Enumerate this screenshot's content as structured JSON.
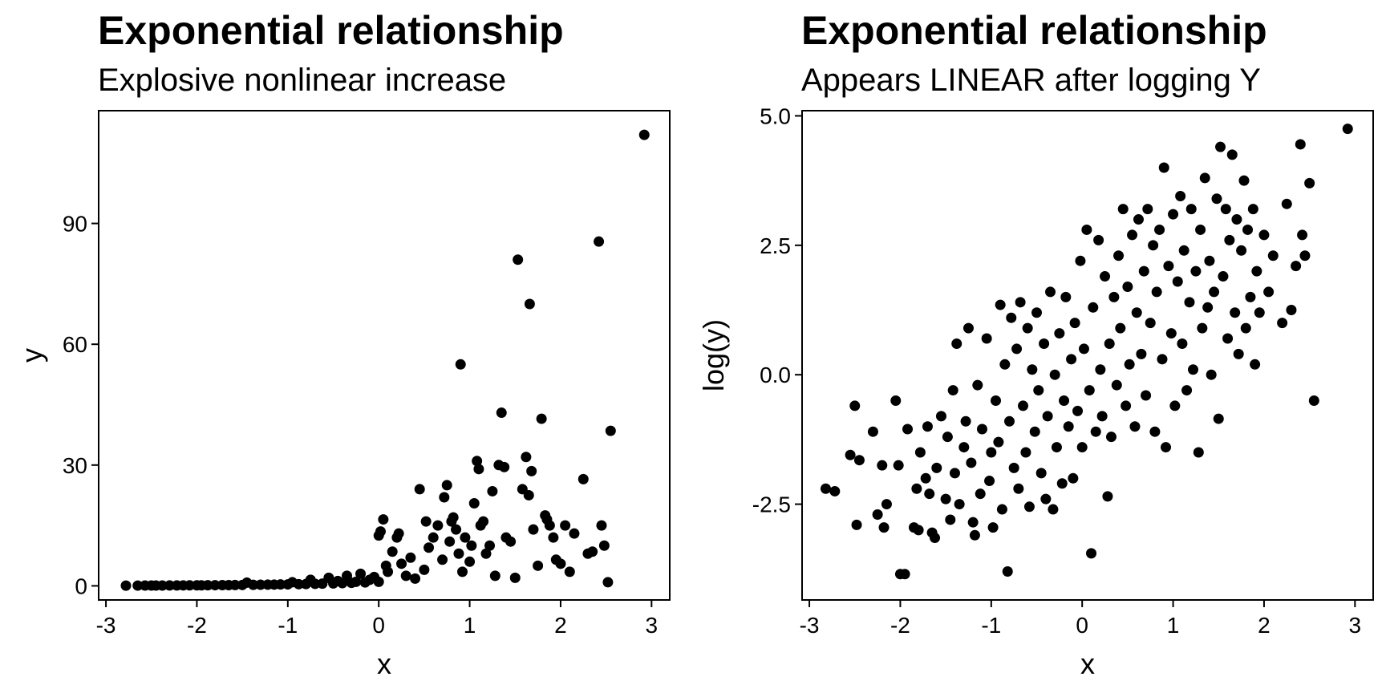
{
  "chart_data": [
    {
      "type": "scatter",
      "title": "Exponential relationship",
      "subtitle": "Explosive nonlinear increase",
      "xlabel": "x",
      "ylabel": "y",
      "xlim": [
        -3.08,
        3.2
      ],
      "ylim": [
        -3.5,
        118
      ],
      "xticks": [
        -3,
        -2,
        -1,
        0,
        1,
        2,
        3
      ],
      "xtick_labels": [
        "-3",
        "-2",
        "-1",
        "0",
        "1",
        "2",
        "3"
      ],
      "yticks": [
        0,
        30,
        60,
        90
      ],
      "ytick_labels": [
        "0",
        "30",
        "60",
        "90"
      ],
      "grid": false,
      "point_color": "#000000",
      "points": [
        [
          -2.78,
          0.06
        ],
        [
          -2.65,
          0.07
        ],
        [
          -2.57,
          0.08
        ],
        [
          -2.5,
          0.08
        ],
        [
          -2.45,
          0.09
        ],
        [
          -2.38,
          0.09
        ],
        [
          -2.3,
          0.1
        ],
        [
          -2.22,
          0.11
        ],
        [
          -2.15,
          0.12
        ],
        [
          -2.08,
          0.13
        ],
        [
          -2.0,
          0.14
        ],
        [
          -1.95,
          0.14
        ],
        [
          -1.88,
          0.15
        ],
        [
          -1.8,
          0.17
        ],
        [
          -1.72,
          0.18
        ],
        [
          -1.65,
          0.19
        ],
        [
          -1.58,
          0.21
        ],
        [
          -1.5,
          0.22
        ],
        [
          -1.45,
          0.8
        ],
        [
          -1.38,
          0.25
        ],
        [
          -1.3,
          0.28
        ],
        [
          -1.22,
          0.3
        ],
        [
          -1.15,
          0.32
        ],
        [
          -1.08,
          0.35
        ],
        [
          -1.0,
          0.37
        ],
        [
          -0.95,
          0.9
        ],
        [
          -0.88,
          0.42
        ],
        [
          -0.8,
          0.45
        ],
        [
          -0.75,
          1.5
        ],
        [
          -0.7,
          0.5
        ],
        [
          -0.62,
          0.55
        ],
        [
          -0.55,
          2.0
        ],
        [
          -0.5,
          0.6
        ],
        [
          -0.45,
          1.2
        ],
        [
          -0.4,
          0.67
        ],
        [
          -0.35,
          2.5
        ],
        [
          -0.3,
          0.75
        ],
        [
          -0.25,
          1.0
        ],
        [
          -0.2,
          3.0
        ],
        [
          -0.15,
          0.85
        ],
        [
          -0.1,
          1.5
        ],
        [
          -0.05,
          2.2
        ],
        [
          0.0,
          1.0
        ],
        [
          0.0,
          12.5
        ],
        [
          0.02,
          13.5
        ],
        [
          0.05,
          16.5
        ],
        [
          0.08,
          5.0
        ],
        [
          0.1,
          3.5
        ],
        [
          0.15,
          8.5
        ],
        [
          0.2,
          12.0
        ],
        [
          0.22,
          13.0
        ],
        [
          0.25,
          5.5
        ],
        [
          0.3,
          2.5
        ],
        [
          0.35,
          7.0
        ],
        [
          0.4,
          1.8
        ],
        [
          0.45,
          24.0
        ],
        [
          0.5,
          4.0
        ],
        [
          0.52,
          16.0
        ],
        [
          0.55,
          9.5
        ],
        [
          0.6,
          12.0
        ],
        [
          0.65,
          15.0
        ],
        [
          0.7,
          6.5
        ],
        [
          0.72,
          22.0
        ],
        [
          0.75,
          25.0
        ],
        [
          0.78,
          11.0
        ],
        [
          0.8,
          16.0
        ],
        [
          0.82,
          17.0
        ],
        [
          0.85,
          14.0
        ],
        [
          0.88,
          8.0
        ],
        [
          0.9,
          55.0
        ],
        [
          0.92,
          3.5
        ],
        [
          0.95,
          12.0
        ],
        [
          1.0,
          6.0
        ],
        [
          1.02,
          10.0
        ],
        [
          1.05,
          20.5
        ],
        [
          1.08,
          31.0
        ],
        [
          1.1,
          29.0
        ],
        [
          1.12,
          15.0
        ],
        [
          1.15,
          16.0
        ],
        [
          1.18,
          8.0
        ],
        [
          1.22,
          10.0
        ],
        [
          1.25,
          23.5
        ],
        [
          1.28,
          2.5
        ],
        [
          1.32,
          30.0
        ],
        [
          1.35,
          43.0
        ],
        [
          1.38,
          29.5
        ],
        [
          1.4,
          12.0
        ],
        [
          1.45,
          11.0
        ],
        [
          1.5,
          2.0
        ],
        [
          1.53,
          81.0
        ],
        [
          1.58,
          24.0
        ],
        [
          1.62,
          32.0
        ],
        [
          1.65,
          22.5
        ],
        [
          1.66,
          70.0
        ],
        [
          1.68,
          28.5
        ],
        [
          1.7,
          14.0
        ],
        [
          1.75,
          5.0
        ],
        [
          1.79,
          41.5
        ],
        [
          1.83,
          17.5
        ],
        [
          1.85,
          16.5
        ],
        [
          1.88,
          15.0
        ],
        [
          1.92,
          12.0
        ],
        [
          1.95,
          6.5
        ],
        [
          2.0,
          5.5
        ],
        [
          2.05,
          15.0
        ],
        [
          2.1,
          3.5
        ],
        [
          2.15,
          13.0
        ],
        [
          2.25,
          26.5
        ],
        [
          2.3,
          8.0
        ],
        [
          2.35,
          8.5
        ],
        [
          2.42,
          85.5
        ],
        [
          2.45,
          15.0
        ],
        [
          2.48,
          10.0
        ],
        [
          2.52,
          0.9
        ],
        [
          2.55,
          38.5
        ],
        [
          2.92,
          112.0
        ]
      ]
    },
    {
      "type": "scatter",
      "title": "Exponential relationship",
      "subtitle": "Appears LINEAR after logging Y",
      "xlabel": "x",
      "ylabel": "log(y)",
      "xlim": [
        -3.08,
        3.2
      ],
      "ylim": [
        -4.35,
        5.1
      ],
      "xticks": [
        -3,
        -2,
        -1,
        0,
        1,
        2,
        3
      ],
      "xtick_labels": [
        "-3",
        "-2",
        "-1",
        "0",
        "1",
        "2",
        "3"
      ],
      "yticks": [
        -2.5,
        0.0,
        2.5,
        5.0
      ],
      "ytick_labels": [
        "-2.5",
        "0.0",
        "2.5",
        "5.0"
      ],
      "grid": false,
      "point_color": "#000000",
      "points": [
        [
          -2.82,
          -2.2
        ],
        [
          -2.72,
          -2.25
        ],
        [
          -2.55,
          -1.55
        ],
        [
          -2.5,
          -0.6
        ],
        [
          -2.48,
          -2.9
        ],
        [
          -2.45,
          -1.65
        ],
        [
          -2.3,
          -1.1
        ],
        [
          -2.25,
          -2.7
        ],
        [
          -2.2,
          -1.75
        ],
        [
          -2.18,
          -2.95
        ],
        [
          -2.15,
          -2.5
        ],
        [
          -2.05,
          -0.5
        ],
        [
          -2.02,
          -1.75
        ],
        [
          -2.0,
          -3.85
        ],
        [
          -1.95,
          -3.85
        ],
        [
          -1.92,
          -1.05
        ],
        [
          -1.85,
          -2.95
        ],
        [
          -1.82,
          -2.2
        ],
        [
          -1.8,
          -3.0
        ],
        [
          -1.78,
          -1.5
        ],
        [
          -1.72,
          -2.0
        ],
        [
          -1.7,
          -1.0
        ],
        [
          -1.68,
          -2.3
        ],
        [
          -1.65,
          -3.05
        ],
        [
          -1.62,
          -3.15
        ],
        [
          -1.6,
          -1.8
        ],
        [
          -1.55,
          -0.8
        ],
        [
          -1.5,
          -2.4
        ],
        [
          -1.48,
          -1.2
        ],
        [
          -1.45,
          -2.8
        ],
        [
          -1.42,
          -0.3
        ],
        [
          -1.4,
          -1.9
        ],
        [
          -1.38,
          0.6
        ],
        [
          -1.35,
          -2.5
        ],
        [
          -1.3,
          -1.4
        ],
        [
          -1.28,
          -0.9
        ],
        [
          -1.25,
          0.9
        ],
        [
          -1.22,
          -1.7
        ],
        [
          -1.2,
          -2.85
        ],
        [
          -1.18,
          -3.1
        ],
        [
          -1.15,
          -0.2
        ],
        [
          -1.12,
          -2.3
        ],
        [
          -1.1,
          -1.05
        ],
        [
          -1.05,
          0.7
        ],
        [
          -1.02,
          -2.05
        ],
        [
          -1.0,
          -1.5
        ],
        [
          -0.98,
          -2.95
        ],
        [
          -0.95,
          -0.5
        ],
        [
          -0.92,
          -1.3
        ],
        [
          -0.9,
          1.35
        ],
        [
          -0.88,
          -2.6
        ],
        [
          -0.85,
          0.2
        ],
        [
          -0.82,
          -3.8
        ],
        [
          -0.8,
          -0.9
        ],
        [
          -0.78,
          1.1
        ],
        [
          -0.75,
          -1.8
        ],
        [
          -0.72,
          0.5
        ],
        [
          -0.7,
          -2.2
        ],
        [
          -0.68,
          1.4
        ],
        [
          -0.65,
          -0.6
        ],
        [
          -0.62,
          -1.5
        ],
        [
          -0.6,
          0.9
        ],
        [
          -0.58,
          -2.55
        ],
        [
          -0.55,
          0.1
        ],
        [
          -0.52,
          -1.1
        ],
        [
          -0.5,
          1.2
        ],
        [
          -0.48,
          -0.3
        ],
        [
          -0.45,
          -1.9
        ],
        [
          -0.42,
          0.6
        ],
        [
          -0.4,
          -2.4
        ],
        [
          -0.38,
          -0.8
        ],
        [
          -0.35,
          1.6
        ],
        [
          -0.32,
          -2.6
        ],
        [
          -0.3,
          0.0
        ],
        [
          -0.28,
          -1.4
        ],
        [
          -0.25,
          0.8
        ],
        [
          -0.22,
          -2.1
        ],
        [
          -0.2,
          -0.5
        ],
        [
          -0.18,
          1.5
        ],
        [
          -0.15,
          -1.0
        ],
        [
          -0.12,
          0.3
        ],
        [
          -0.1,
          -2.0
        ],
        [
          -0.08,
          1.0
        ],
        [
          -0.05,
          -0.7
        ],
        [
          -0.02,
          2.2
        ],
        [
          0.0,
          -1.4
        ],
        [
          0.02,
          0.5
        ],
        [
          0.05,
          2.8
        ],
        [
          0.08,
          -0.3
        ],
        [
          0.1,
          -3.45
        ],
        [
          0.12,
          1.3
        ],
        [
          0.15,
          -1.1
        ],
        [
          0.18,
          2.6
        ],
        [
          0.2,
          0.1
        ],
        [
          0.22,
          -0.8
        ],
        [
          0.25,
          1.9
        ],
        [
          0.28,
          -2.35
        ],
        [
          0.3,
          0.6
        ],
        [
          0.32,
          -1.2
        ],
        [
          0.35,
          1.5
        ],
        [
          0.38,
          -0.2
        ],
        [
          0.4,
          2.3
        ],
        [
          0.42,
          0.9
        ],
        [
          0.45,
          3.2
        ],
        [
          0.48,
          -0.6
        ],
        [
          0.5,
          1.7
        ],
        [
          0.52,
          0.2
        ],
        [
          0.55,
          2.7
        ],
        [
          0.58,
          -1.0
        ],
        [
          0.6,
          1.2
        ],
        [
          0.62,
          3.0
        ],
        [
          0.65,
          0.4
        ],
        [
          0.68,
          2.0
        ],
        [
          0.7,
          -0.4
        ],
        [
          0.72,
          3.2
        ],
        [
          0.75,
          1.0
        ],
        [
          0.78,
          2.5
        ],
        [
          0.8,
          -1.1
        ],
        [
          0.82,
          1.6
        ],
        [
          0.85,
          2.8
        ],
        [
          0.88,
          0.3
        ],
        [
          0.9,
          4.0
        ],
        [
          0.92,
          -1.4
        ],
        [
          0.95,
          2.1
        ],
        [
          0.98,
          0.8
        ],
        [
          1.0,
          3.1
        ],
        [
          1.02,
          -0.6
        ],
        [
          1.05,
          1.8
        ],
        [
          1.08,
          3.45
        ],
        [
          1.1,
          0.6
        ],
        [
          1.12,
          2.4
        ],
        [
          1.15,
          -0.3
        ],
        [
          1.18,
          1.4
        ],
        [
          1.2,
          3.2
        ],
        [
          1.22,
          0.1
        ],
        [
          1.25,
          2.0
        ],
        [
          1.28,
          -1.5
        ],
        [
          1.3,
          2.8
        ],
        [
          1.32,
          0.9
        ],
        [
          1.35,
          3.8
        ],
        [
          1.38,
          1.3
        ],
        [
          1.4,
          2.2
        ],
        [
          1.42,
          0.0
        ],
        [
          1.45,
          1.6
        ],
        [
          1.48,
          3.4
        ],
        [
          1.5,
          -0.85
        ],
        [
          1.52,
          4.4
        ],
        [
          1.55,
          1.9
        ],
        [
          1.58,
          3.2
        ],
        [
          1.6,
          0.7
        ],
        [
          1.62,
          2.6
        ],
        [
          1.65,
          4.25
        ],
        [
          1.68,
          1.2
        ],
        [
          1.7,
          3.0
        ],
        [
          1.72,
          0.4
        ],
        [
          1.75,
          2.4
        ],
        [
          1.78,
          3.75
        ],
        [
          1.8,
          0.9
        ],
        [
          1.82,
          2.8
        ],
        [
          1.85,
          1.5
        ],
        [
          1.88,
          3.2
        ],
        [
          1.9,
          0.2
        ],
        [
          1.92,
          2.0
        ],
        [
          1.95,
          1.2
        ],
        [
          2.0,
          2.7
        ],
        [
          2.05,
          1.6
        ],
        [
          2.1,
          2.3
        ],
        [
          2.2,
          1.0
        ],
        [
          2.25,
          3.3
        ],
        [
          2.3,
          1.25
        ],
        [
          2.35,
          2.1
        ],
        [
          2.4,
          4.45
        ],
        [
          2.42,
          2.7
        ],
        [
          2.45,
          2.3
        ],
        [
          2.5,
          3.7
        ],
        [
          2.55,
          -0.5
        ],
        [
          2.92,
          4.75
        ]
      ]
    }
  ]
}
